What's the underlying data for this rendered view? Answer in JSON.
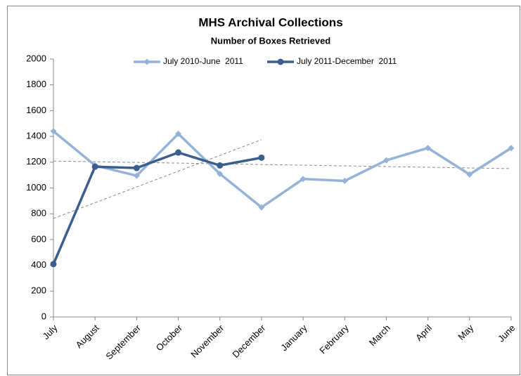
{
  "chart_data": {
    "type": "line",
    "title": "MHS Archival Collections",
    "subtitle": "Number of Boxes Retrieved",
    "categories": [
      "July",
      "August",
      "September",
      "October",
      "November",
      "December",
      "January",
      "February",
      "March",
      "April",
      "May",
      "June"
    ],
    "series": [
      {
        "name": "July 2010-June  2011",
        "color": "#95b3d7",
        "marker": "diamond",
        "trendline": true,
        "values": [
          1440,
          1175,
          1095,
          1420,
          1110,
          850,
          1070,
          1055,
          1215,
          1310,
          1105,
          1310
        ]
      },
      {
        "name": "July 2011-December  2011",
        "color": "#3a5f8f",
        "marker": "circle",
        "trendline": true,
        "values": [
          410,
          1165,
          1155,
          1275,
          1175,
          1235,
          null,
          null,
          null,
          null,
          null,
          null
        ]
      }
    ],
    "ylim": [
      0,
      2000
    ],
    "yticks": [
      0,
      200,
      400,
      600,
      800,
      1000,
      1200,
      1400,
      1600,
      1800,
      2000
    ],
    "legend": "top",
    "grid": false
  }
}
